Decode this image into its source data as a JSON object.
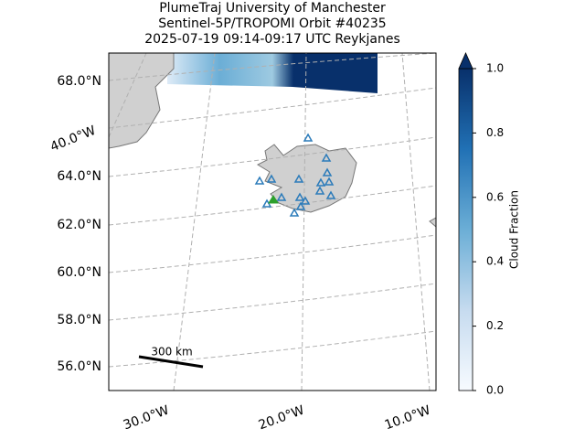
{
  "title_lines": [
    "PlumeTraj    University of Manchester",
    "Sentinel-5P/TROPOMI Orbit #40235",
    "2025-07-19   09:14-09:17 UTC   Reykjanes"
  ],
  "lat_labels": [
    "68.0°N",
    "64.0°N",
    "62.0°N",
    "60.0°N",
    "58.0°N",
    "56.0°N"
  ],
  "lon_labels": [
    "40.0°W",
    "30.0°W",
    "20.0°W",
    "10.0°W"
  ],
  "scale_label": "300 km",
  "colorbar": {
    "label": "Cloud Fraction",
    "lim": [
      0,
      1
    ],
    "ticks": [
      {
        "value": 0,
        "label": "0.0"
      },
      {
        "value": 0.2,
        "label": "0.2"
      },
      {
        "value": 0.4,
        "label": "0.4"
      },
      {
        "value": 0.6,
        "label": "0.6"
      },
      {
        "value": 0.8,
        "label": "0.8"
      },
      {
        "value": 1,
        "label": "1.0"
      }
    ]
  }
}
